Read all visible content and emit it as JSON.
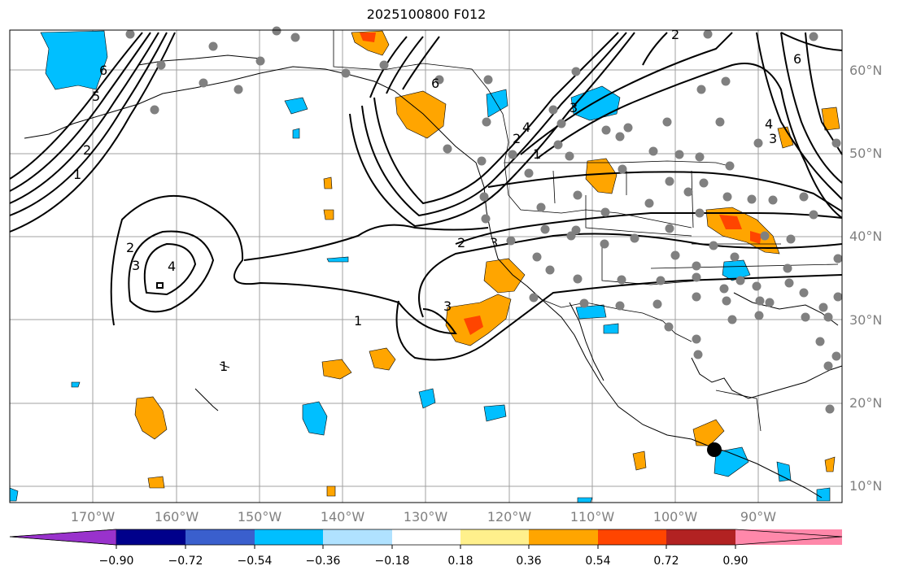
{
  "title": "2025100800 F012",
  "lat_labels": [
    "60°N",
    "50°N",
    "40°N",
    "30°N",
    "20°N",
    "10°N"
  ],
  "lon_labels": [
    "170°W",
    "160°W",
    "150°W",
    "140°W",
    "130°W",
    "120°W",
    "110°W",
    "100°W",
    "90°W"
  ],
  "colorbar": {
    "colors": [
      "#9932cc",
      "#00008b",
      "#3a5fcd",
      "#00bfff",
      "#b0e2ff",
      "#ffffff",
      "#fff08c",
      "#ffa500",
      "#ff4500",
      "#b22222",
      "#ff88aa"
    ],
    "tick_labels": [
      "−0.90",
      "−0.72",
      "−0.54",
      "−0.36",
      "−0.18",
      "0.18",
      "0.36",
      "0.54",
      "0.72",
      "0.90"
    ]
  },
  "contour_labels": [
    "6",
    "5",
    "4",
    "3",
    "2",
    "1",
    "6",
    "5",
    "2",
    "3",
    "4",
    "2",
    "1",
    "1",
    "3",
    "2",
    "3",
    "4",
    "1",
    "1",
    "2",
    "3",
    "4",
    "5",
    "6",
    "2",
    "3"
  ],
  "colors": {
    "positive": "#ffa500",
    "positive_strong": "#ff4500",
    "negative": "#00bfff",
    "station": "#808080",
    "marker": "#000000"
  }
}
